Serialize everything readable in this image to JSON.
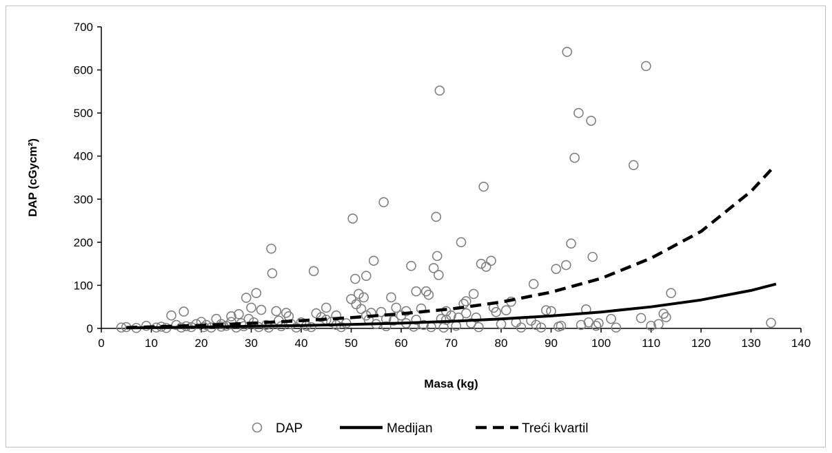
{
  "chart_data": {
    "type": "scatter",
    "title": "",
    "xlabel": "Masa (kg)",
    "ylabel": "DAP (cGycm²)",
    "xlim": [
      0,
      140
    ],
    "ylim": [
      0,
      700
    ],
    "xticks": [
      0,
      10,
      20,
      30,
      40,
      50,
      60,
      70,
      80,
      90,
      100,
      110,
      120,
      130,
      140
    ],
    "yticks": [
      0,
      100,
      200,
      300,
      400,
      500,
      600,
      700
    ],
    "grid": false,
    "legend_position": "bottom",
    "series": [
      {
        "name": "DAP",
        "kind": "scatter",
        "marker": "open-circle",
        "color": "#7f7f7f",
        "points": [
          [
            4,
            2
          ],
          [
            5,
            3
          ],
          [
            7,
            1
          ],
          [
            9,
            6
          ],
          [
            11,
            2
          ],
          [
            12,
            4
          ],
          [
            13,
            1
          ],
          [
            14,
            30
          ],
          [
            15,
            8
          ],
          [
            16,
            2
          ],
          [
            16.5,
            39
          ],
          [
            17,
            5
          ],
          [
            18,
            3
          ],
          [
            19,
            10
          ],
          [
            20,
            15
          ],
          [
            20.5,
            3
          ],
          [
            21,
            8
          ],
          [
            22,
            2
          ],
          [
            23,
            22
          ],
          [
            24,
            4
          ],
          [
            25,
            6
          ],
          [
            26,
            28
          ],
          [
            27,
            2
          ],
          [
            27.5,
            33
          ],
          [
            28,
            12
          ],
          [
            28.5,
            5
          ],
          [
            29,
            71
          ],
          [
            29.5,
            22
          ],
          [
            30,
            48
          ],
          [
            30.5,
            14
          ],
          [
            31,
            82
          ],
          [
            31.5,
            3
          ],
          [
            32,
            43
          ],
          [
            33,
            8
          ],
          [
            33.5,
            2
          ],
          [
            34,
            185
          ],
          [
            34.2,
            128
          ],
          [
            35,
            40
          ],
          [
            35.5,
            18
          ],
          [
            36,
            5
          ],
          [
            37,
            36
          ],
          [
            37.5,
            28
          ],
          [
            38,
            10
          ],
          [
            39,
            2
          ],
          [
            40,
            14
          ],
          [
            41,
            6
          ],
          [
            42,
            3
          ],
          [
            42.5,
            133
          ],
          [
            43,
            35
          ],
          [
            44,
            26
          ],
          [
            45,
            48
          ],
          [
            46,
            15
          ],
          [
            47,
            8
          ],
          [
            48,
            3
          ],
          [
            49,
            12
          ],
          [
            50,
            68
          ],
          [
            50.3,
            255
          ],
          [
            50.8,
            115
          ],
          [
            51,
            56
          ],
          [
            51.5,
            80
          ],
          [
            52,
            45
          ],
          [
            52.5,
            72
          ],
          [
            53,
            122
          ],
          [
            53.5,
            20
          ],
          [
            54,
            36
          ],
          [
            54.5,
            157
          ],
          [
            55,
            10
          ],
          [
            56,
            38
          ],
          [
            56.5,
            293
          ],
          [
            57,
            5
          ],
          [
            58,
            72
          ],
          [
            58.5,
            18
          ],
          [
            59,
            48
          ],
          [
            60,
            30
          ],
          [
            61,
            12
          ],
          [
            62,
            145
          ],
          [
            62.5,
            4
          ],
          [
            63,
            86
          ],
          [
            64,
            46
          ],
          [
            64.5,
            8
          ],
          [
            65,
            86
          ],
          [
            65.5,
            78
          ],
          [
            66,
            3
          ],
          [
            66.5,
            140
          ],
          [
            67,
            259
          ],
          [
            67.2,
            168
          ],
          [
            67.5,
            124
          ],
          [
            67.7,
            552
          ],
          [
            68,
            22
          ],
          [
            68.5,
            2
          ],
          [
            69,
            40
          ],
          [
            70,
            30
          ],
          [
            71,
            6
          ],
          [
            71.5,
            25
          ],
          [
            72,
            200
          ],
          [
            72.5,
            57
          ],
          [
            73,
            63
          ],
          [
            74,
            12
          ],
          [
            74.5,
            80
          ],
          [
            75,
            25
          ],
          [
            75.5,
            3
          ],
          [
            76,
            150
          ],
          [
            76.5,
            329
          ],
          [
            77,
            143
          ],
          [
            78,
            157
          ],
          [
            78.5,
            48
          ],
          [
            79,
            38
          ],
          [
            80,
            10
          ],
          [
            81,
            42
          ],
          [
            82,
            62
          ],
          [
            83,
            14
          ],
          [
            84,
            2
          ],
          [
            86,
            18
          ],
          [
            86.5,
            103
          ],
          [
            87,
            8
          ],
          [
            88,
            2
          ],
          [
            89,
            42
          ],
          [
            90,
            40
          ],
          [
            91,
            138
          ],
          [
            91.5,
            4
          ],
          [
            92,
            6
          ],
          [
            93,
            147
          ],
          [
            93.2,
            642
          ],
          [
            94,
            197
          ],
          [
            94.7,
            396
          ],
          [
            95.5,
            500
          ],
          [
            96,
            8
          ],
          [
            97,
            44
          ],
          [
            97.5,
            14
          ],
          [
            98,
            482
          ],
          [
            98.3,
            166
          ],
          [
            99,
            6
          ],
          [
            99.5,
            12
          ],
          [
            102,
            22
          ],
          [
            103,
            2
          ],
          [
            106.5,
            379
          ],
          [
            108,
            24
          ],
          [
            109,
            609
          ],
          [
            110,
            6
          ],
          [
            111.5,
            10
          ],
          [
            112.5,
            34
          ],
          [
            113,
            26
          ],
          [
            114,
            82
          ],
          [
            134,
            13
          ],
          [
            45,
            20
          ],
          [
            47,
            30
          ],
          [
            53,
            30
          ],
          [
            57,
            22
          ],
          [
            61,
            40
          ],
          [
            63,
            20
          ],
          [
            69,
            20
          ],
          [
            73,
            35
          ],
          [
            24,
            10
          ],
          [
            26,
            15
          ]
        ]
      },
      {
        "name": "Medijan",
        "kind": "line",
        "dash": "solid",
        "color": "#000000",
        "x": [
          5,
          10,
          20,
          30,
          40,
          50,
          60,
          70,
          80,
          90,
          100,
          110,
          120,
          130,
          135
        ],
        "y": [
          1,
          1.7,
          3.2,
          5,
          6.6,
          9.2,
          12.2,
          16.5,
          22,
          29,
          38,
          50,
          66,
          88,
          103
        ]
      },
      {
        "name": "Treći kvartil",
        "kind": "line",
        "dash": "dashed",
        "color": "#000000",
        "x": [
          5,
          10,
          20,
          30,
          40,
          50,
          60,
          70,
          80,
          90,
          100,
          110,
          120,
          130,
          134
        ],
        "y": [
          2,
          3.5,
          7,
          12,
          18,
          25,
          34,
          45,
          61,
          84,
          116,
          163,
          225,
          318,
          368
        ]
      }
    ]
  }
}
